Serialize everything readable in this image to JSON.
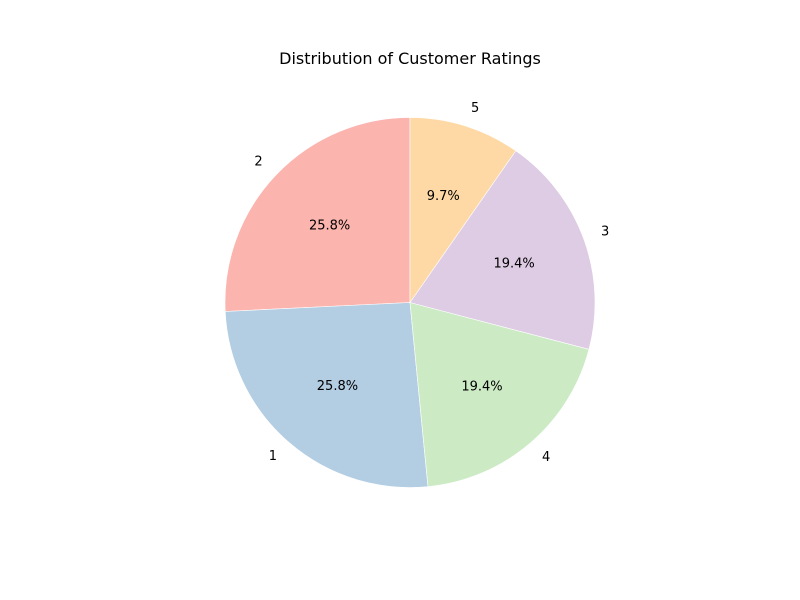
{
  "chart_data": {
    "type": "pie",
    "title": "Distribution of Customer Ratings",
    "start_angle_deg": 90,
    "direction": "counterclockwise",
    "slices": [
      {
        "label": "2",
        "value": 25.8,
        "pct_label": "25.8%",
        "color": "#fbb4ae"
      },
      {
        "label": "1",
        "value": 25.8,
        "pct_label": "25.8%",
        "color": "#b3cde3"
      },
      {
        "label": "4",
        "value": 19.4,
        "pct_label": "19.4%",
        "color": "#ccebc5"
      },
      {
        "label": "3",
        "value": 19.4,
        "pct_label": "19.4%",
        "color": "#decbe4"
      },
      {
        "label": "5",
        "value": 9.7,
        "pct_label": "9.7%",
        "color": "#fed9a6"
      }
    ]
  }
}
